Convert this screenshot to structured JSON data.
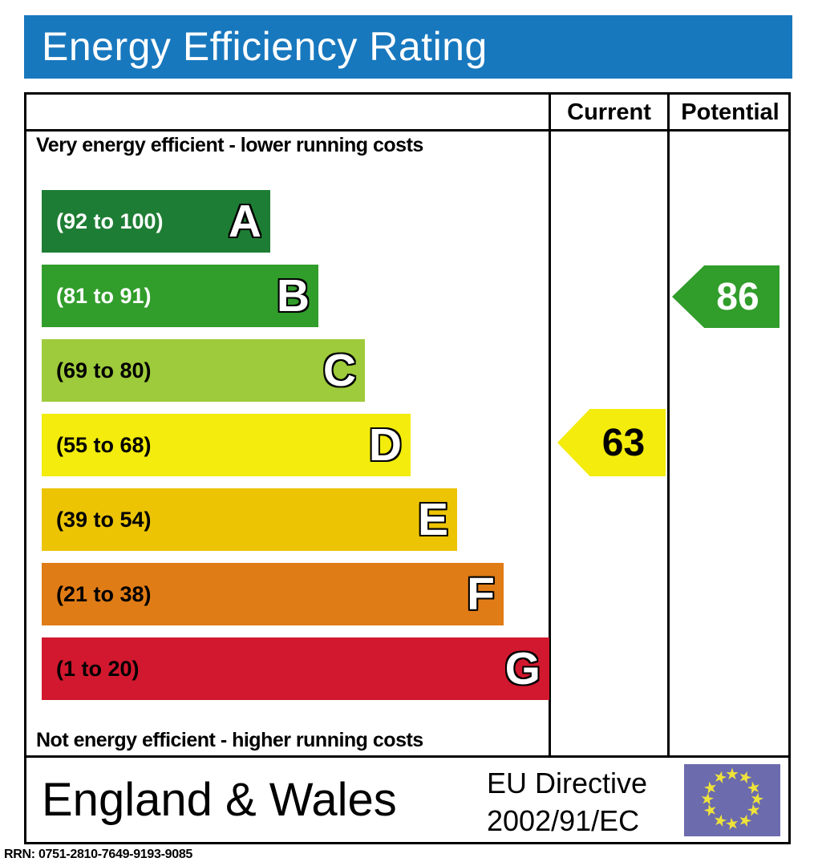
{
  "title": "Energy Efficiency Rating",
  "colors": {
    "title_bar": "#1878be",
    "title_text": "#ffffff",
    "border": "#000000"
  },
  "table": {
    "current_header": "Current",
    "potential_header": "Potential"
  },
  "notes": {
    "top": "Very energy efficient - lower running costs",
    "bottom": "Not energy efficient - higher running costs"
  },
  "bands": [
    {
      "letter": "A",
      "range": "(92 to 100)",
      "color": "#1e7d34",
      "text_color": "#ffffff"
    },
    {
      "letter": "B",
      "range": "(81 to 91)",
      "color": "#319d2b",
      "text_color": "#ffffff"
    },
    {
      "letter": "C",
      "range": "(69 to 80)",
      "color": "#9ecb3b",
      "text_color": "#000000"
    },
    {
      "letter": "D",
      "range": "(55 to 68)",
      "color": "#f3ec0c",
      "text_color": "#000000"
    },
    {
      "letter": "E",
      "range": "(39 to 54)",
      "color": "#ecc404",
      "text_color": "#000000"
    },
    {
      "letter": "F",
      "range": "(21 to 38)",
      "color": "#e07c16",
      "text_color": "#000000"
    },
    {
      "letter": "G",
      "range": "(1 to 20)",
      "color": "#d2182e",
      "text_color": "#000000"
    }
  ],
  "ratings": {
    "current": {
      "value": "63",
      "arrow_color": "#f3ec0c",
      "text_color": "#000000"
    },
    "potential": {
      "value": "86",
      "arrow_color": "#319d2b",
      "text_color": "#ffffff"
    }
  },
  "footer": {
    "region": "England & Wales",
    "directive_line1": "EU Directive",
    "directive_line2": "2002/91/EC",
    "flag_color": "#6b6bad",
    "star_color": "#efe23a"
  },
  "rrn": "RRN: 0751-2810-7649-9193-9085",
  "chart_data": {
    "type": "bar",
    "title": "Energy Efficiency Rating",
    "categories": [
      "A",
      "B",
      "C",
      "D",
      "E",
      "F",
      "G"
    ],
    "band_ranges": [
      [
        92,
        100
      ],
      [
        81,
        91
      ],
      [
        69,
        80
      ],
      [
        55,
        68
      ],
      [
        39,
        54
      ],
      [
        21,
        38
      ],
      [
        1,
        20
      ]
    ],
    "band_colors": [
      "#1e7d34",
      "#319d2b",
      "#9ecb3b",
      "#f3ec0c",
      "#ecc404",
      "#e07c16",
      "#d2182e"
    ],
    "series": [
      {
        "name": "Current",
        "value": 63,
        "band": "D"
      },
      {
        "name": "Potential",
        "value": 86,
        "band": "B"
      }
    ],
    "scale": [
      1,
      100
    ],
    "region": "England & Wales",
    "directive": "EU Directive 2002/91/EC"
  }
}
